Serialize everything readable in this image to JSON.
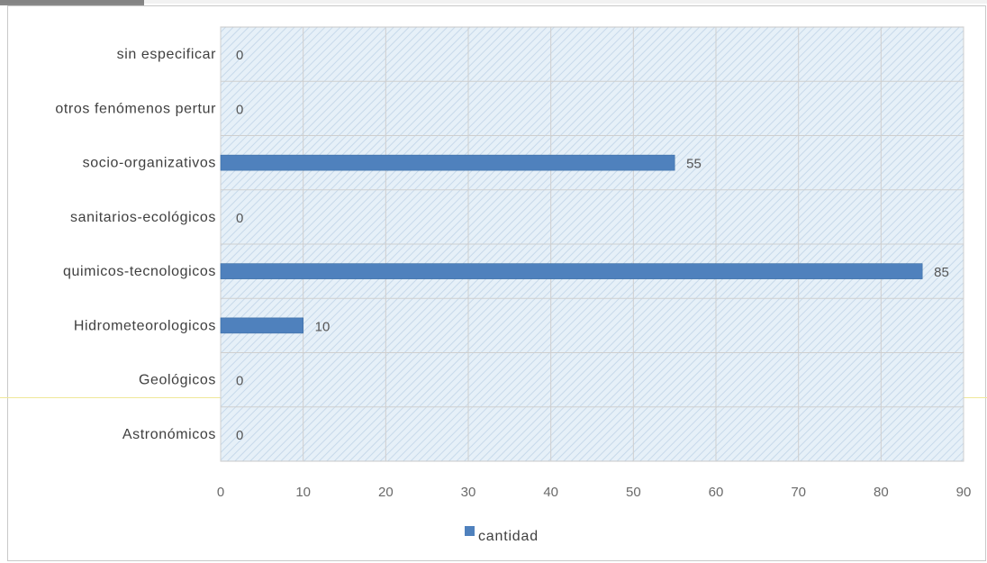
{
  "chart_data": {
    "type": "bar",
    "orientation": "horizontal",
    "categories": [
      "sin especificar",
      "otros fenómenos pertur",
      "socio-organizativos",
      "sanitarios-ecológicos",
      "quimicos-tecnologicos",
      "Hidrometeorologicos",
      "Geológicos",
      "Astronómicos"
    ],
    "series": [
      {
        "name": "cantidad",
        "values": [
          0,
          0,
          55,
          0,
          85,
          10,
          0,
          0
        ],
        "color": "#4f81bd"
      }
    ],
    "xlim": [
      0,
      90
    ],
    "xticks": [
      0,
      10,
      20,
      30,
      40,
      50,
      60,
      70,
      80,
      90
    ],
    "grid": true,
    "legend": "bottom"
  }
}
